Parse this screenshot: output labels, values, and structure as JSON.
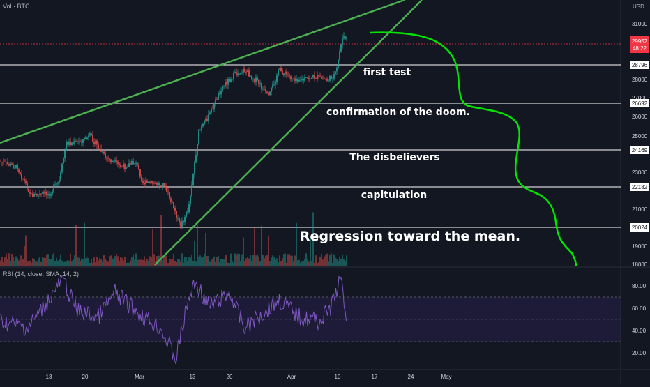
{
  "header": {
    "volume_label": "Vol · BTC",
    "currency": "USD"
  },
  "rsi": {
    "label": "RSI (14, close, SMA, 14, 2)",
    "ticks": [
      "80.00",
      "60.00",
      "40.00",
      "20.00"
    ]
  },
  "price_axis": {
    "ticks": [
      "31000",
      "28000",
      "27000",
      "26000",
      "25000",
      "23000",
      "21000",
      "19000",
      "18000"
    ]
  },
  "current_price": {
    "value": "29952",
    "countdown": "48:22"
  },
  "levels": [
    {
      "value": "28796",
      "annotation": "first test"
    },
    {
      "value": "26692",
      "annotation": "confirmation of the doom."
    },
    {
      "value": "24169",
      "annotation": "The disbelievers"
    },
    {
      "value": "22182",
      "annotation": "capitulation"
    },
    {
      "value": "20024",
      "annotation": "Regression toward the mean."
    }
  ],
  "x_axis": {
    "ticks": [
      "13",
      "20",
      "Mar",
      "13",
      "20",
      "Apr",
      "10",
      "17",
      "24",
      "May"
    ]
  },
  "colors": {
    "background": "#131722",
    "up": "#26a69a",
    "down": "#ef5350",
    "trendline": "#4caf50",
    "projection": "#00e600",
    "rsi_line": "#7e57c2",
    "price_tag": "#f23645"
  },
  "chart_data": {
    "type": "candlestick",
    "price_range": [
      17900,
      31600
    ],
    "rsi_range": [
      10,
      95
    ],
    "horizontal_levels": [
      28796,
      26692,
      24169,
      22182,
      20024
    ],
    "last_price": 29952,
    "rsi_overbought": 70,
    "rsi_mid": 50,
    "rsi_oversold": 30
  }
}
